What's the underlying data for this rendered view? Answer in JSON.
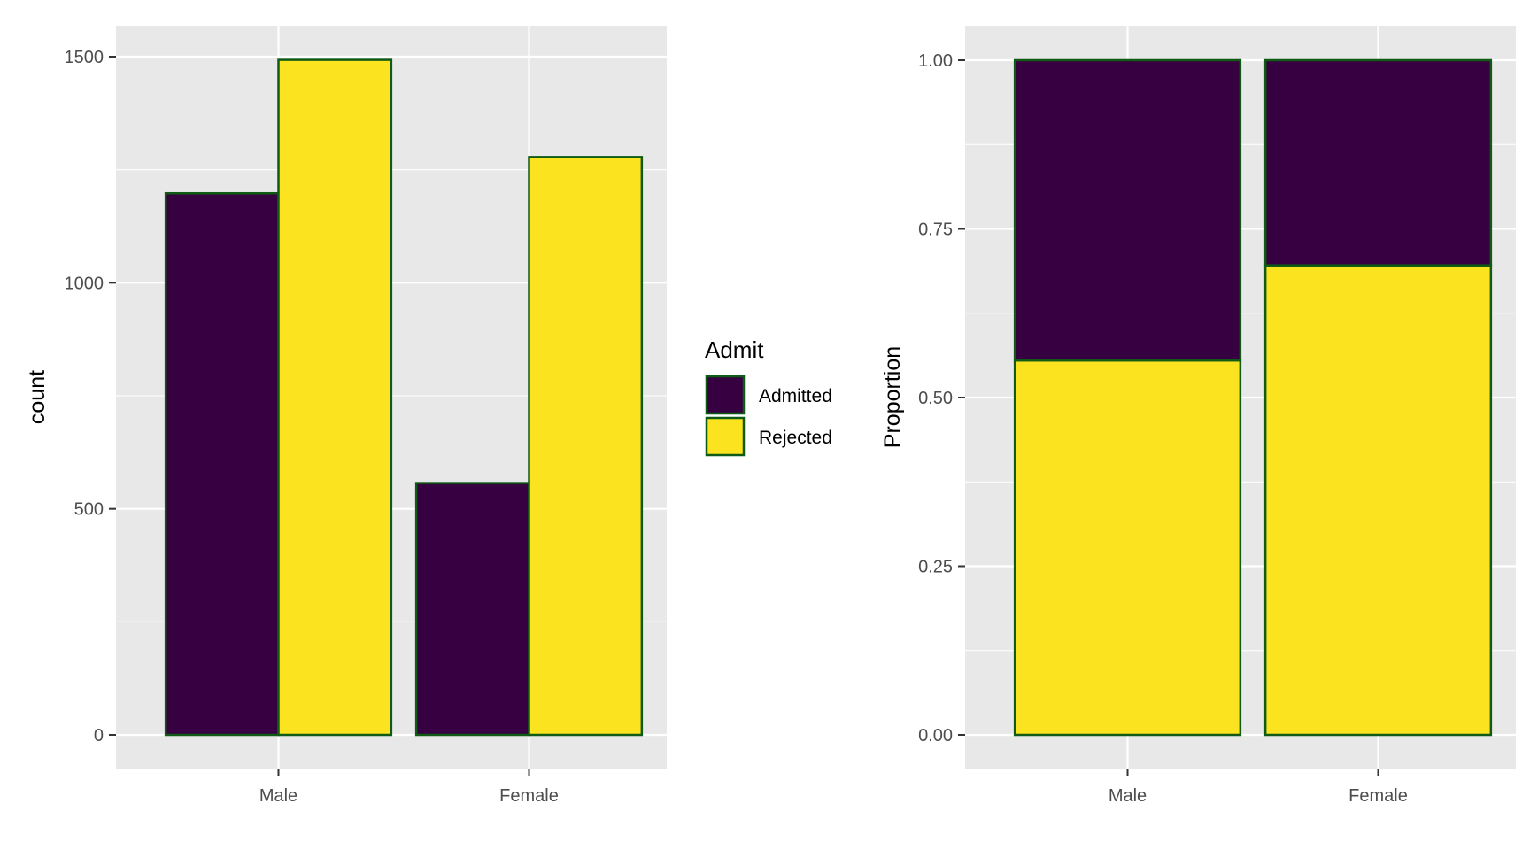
{
  "chart_data": [
    {
      "type": "bar",
      "categories": [
        "Male",
        "Female"
      ],
      "series": [
        {
          "name": "Admitted",
          "values": [
            1198,
            557
          ]
        },
        {
          "name": "Rejected",
          "values": [
            1493,
            1278
          ]
        }
      ],
      "xlabel": "",
      "ylabel": "count",
      "ylim": [
        0,
        1500
      ],
      "yticks": [
        "0",
        "500",
        "1000",
        "1500"
      ],
      "grid": true,
      "position": "dodge"
    },
    {
      "type": "bar",
      "categories": [
        "Male",
        "Female"
      ],
      "series": [
        {
          "name": "Admitted",
          "values": [
            0.445,
            0.304
          ]
        },
        {
          "name": "Rejected",
          "values": [
            0.555,
            0.696
          ]
        }
      ],
      "xlabel": "",
      "ylabel": "Proportion",
      "ylim": [
        0,
        1
      ],
      "yticks": [
        "0.00",
        "0.25",
        "0.50",
        "0.75",
        "1.00"
      ],
      "grid": true,
      "position": "fill"
    }
  ],
  "legend": {
    "title": "Admit",
    "placement": "between panels, right of left chart",
    "items": [
      {
        "label": "Admitted",
        "color": "#370040"
      },
      {
        "label": "Rejected",
        "color": "#fbe31f"
      }
    ]
  },
  "colors": {
    "admitted": "#370040",
    "rejected": "#fbe31f",
    "bar_outline": "#0f5a14",
    "panel_background": "#e8e8e8",
    "grid": "#ffffff"
  }
}
